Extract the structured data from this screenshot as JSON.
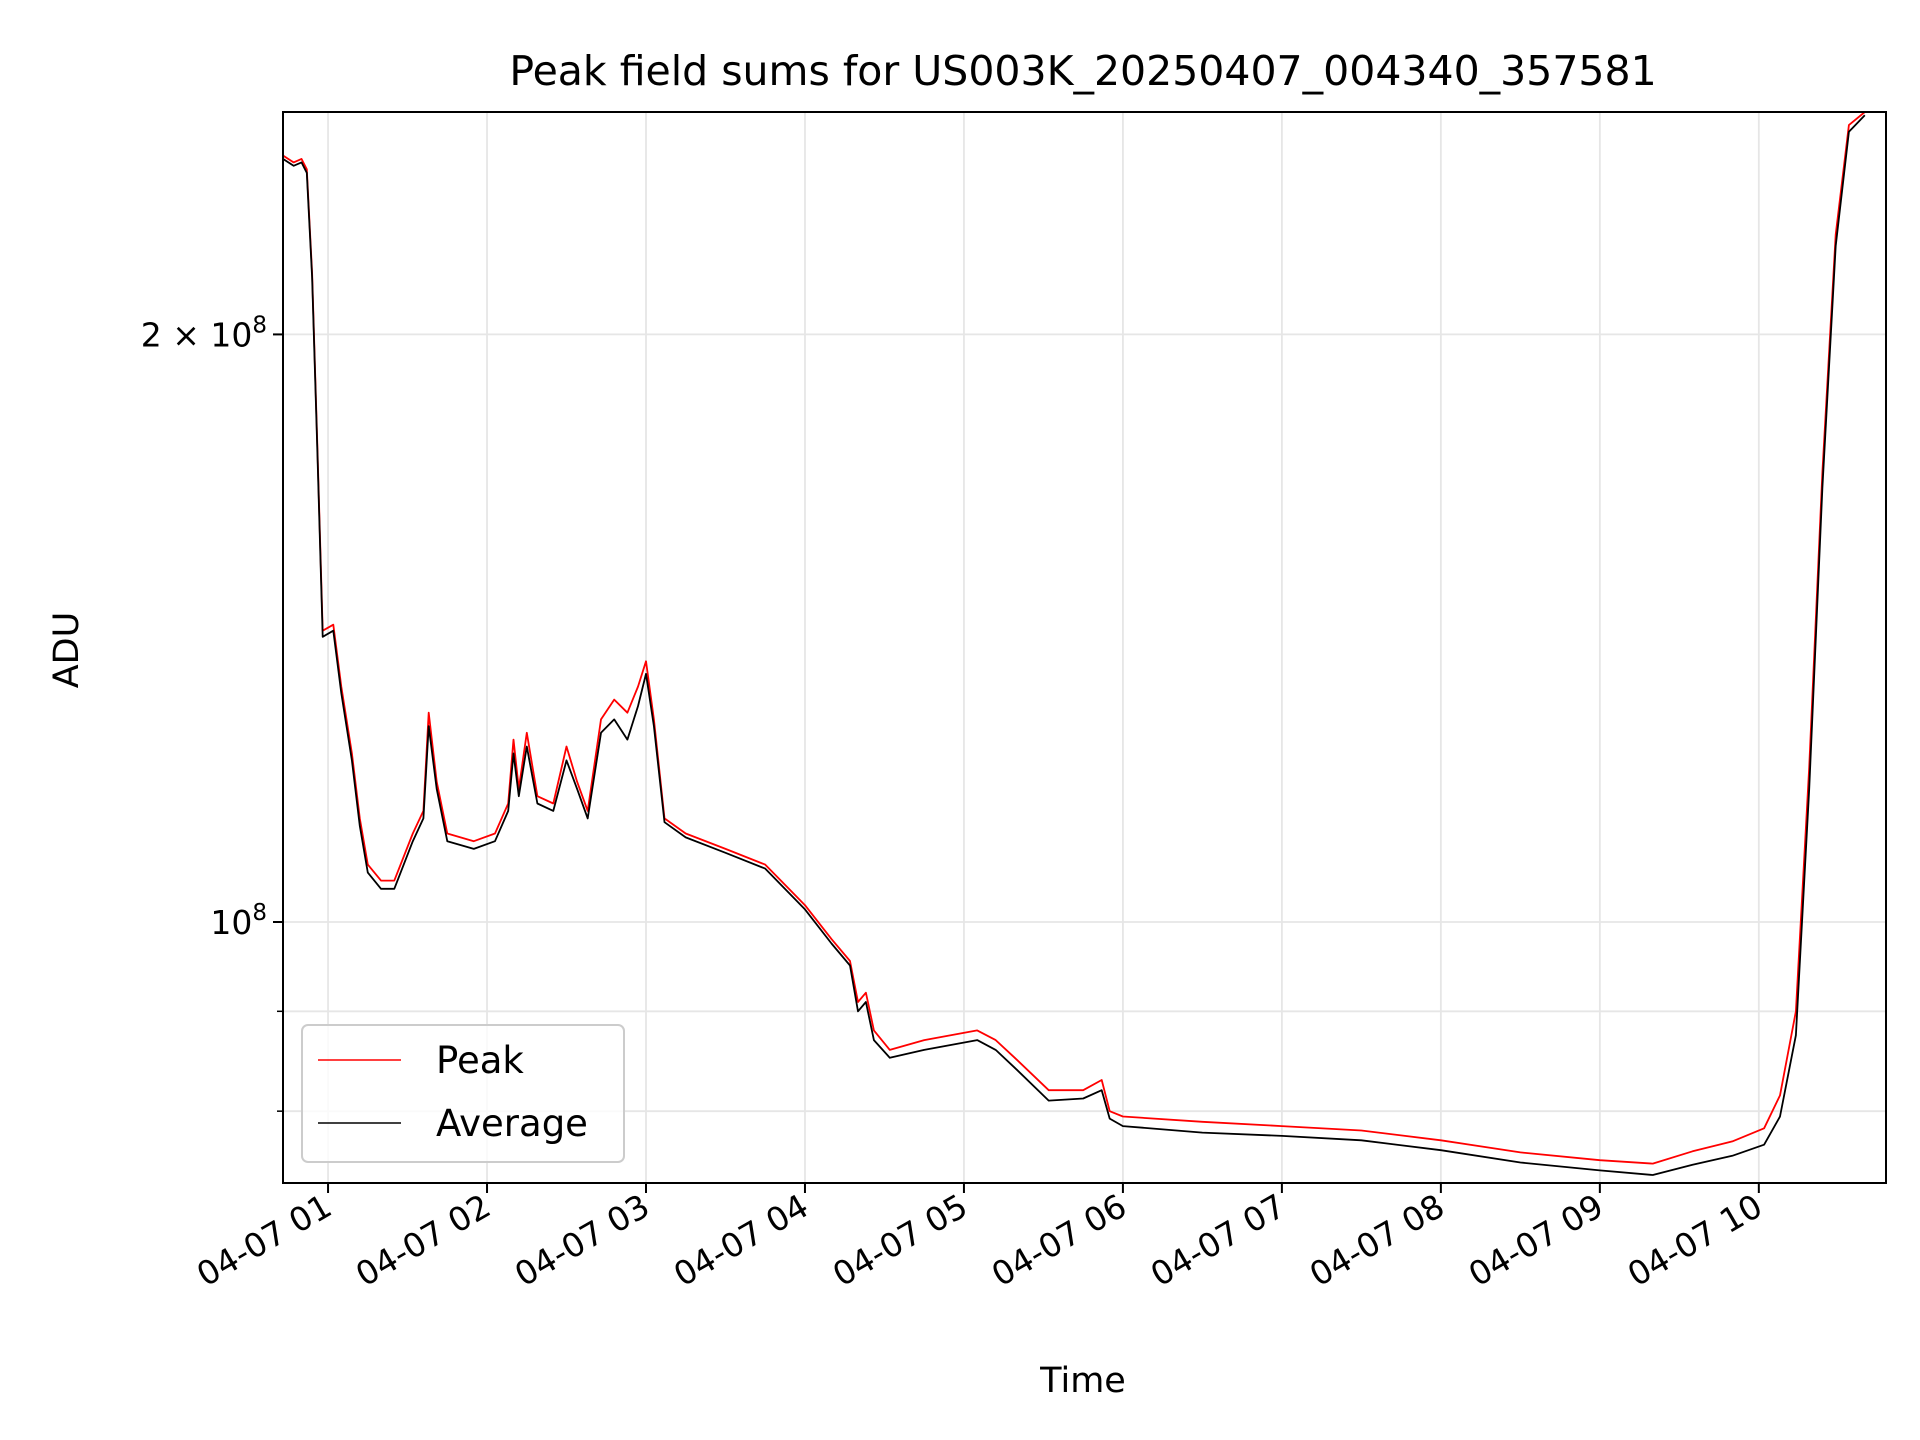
{
  "chart_data": {
    "type": "line",
    "title": "Peak field sums for US003K_20250407_004340_357581",
    "xlabel": "Time",
    "ylabel": "ADU",
    "yscale": "log",
    "grid": true,
    "legend_position": "lower-left",
    "xlim": [
      "2025-04-07 00:43",
      "2025-04-07 10:48"
    ],
    "ylim": [
      73500000,
      260000000
    ],
    "x_ticks": [
      {
        "value": "2025-04-07 01:00",
        "label": "04-07 01"
      },
      {
        "value": "2025-04-07 02:00",
        "label": "04-07 02"
      },
      {
        "value": "2025-04-07 03:00",
        "label": "04-07 03"
      },
      {
        "value": "2025-04-07 04:00",
        "label": "04-07 04"
      },
      {
        "value": "2025-04-07 05:00",
        "label": "04-07 05"
      },
      {
        "value": "2025-04-07 06:00",
        "label": "04-07 06"
      },
      {
        "value": "2025-04-07 07:00",
        "label": "04-07 07"
      },
      {
        "value": "2025-04-07 08:00",
        "label": "04-07 08"
      },
      {
        "value": "2025-04-07 09:00",
        "label": "04-07 09"
      },
      {
        "value": "2025-04-07 10:00",
        "label": "04-07 10"
      }
    ],
    "y_major_ticks": [
      {
        "value": 100000000,
        "base": "10",
        "exp": "8",
        "coef": ""
      },
      {
        "value": 200000000,
        "base": "10",
        "exp": "8",
        "coef": "2 × "
      }
    ],
    "y_minor_ticks": [
      80000000,
      90000000
    ],
    "series": [
      {
        "name": "Peak",
        "color": "#ff0000",
        "points": [
          [
            "2025-04-07 00:43",
            247000000
          ],
          [
            "2025-04-07 00:47",
            245000000
          ],
          [
            "2025-04-07 00:50",
            246000000
          ],
          [
            "2025-04-07 00:52",
            243000000
          ],
          [
            "2025-04-07 00:54",
            215000000
          ],
          [
            "2025-04-07 00:56",
            175000000
          ],
          [
            "2025-04-07 00:58",
            141000000
          ],
          [
            "2025-04-07 01:02",
            142000000
          ],
          [
            "2025-04-07 01:05",
            132000000
          ],
          [
            "2025-04-07 01:09",
            122000000
          ],
          [
            "2025-04-07 01:12",
            113000000
          ],
          [
            "2025-04-07 01:15",
            107000000
          ],
          [
            "2025-04-07 01:20",
            105000000
          ],
          [
            "2025-04-07 01:25",
            105000000
          ],
          [
            "2025-04-07 01:32",
            111000000
          ],
          [
            "2025-04-07 01:36",
            114000000
          ],
          [
            "2025-04-07 01:38",
            128000000
          ],
          [
            "2025-04-07 01:41",
            118000000
          ],
          [
            "2025-04-07 01:45",
            111000000
          ],
          [
            "2025-04-07 01:55",
            110000000
          ],
          [
            "2025-04-07 02:03",
            111000000
          ],
          [
            "2025-04-07 02:08",
            115000000
          ],
          [
            "2025-04-07 02:10",
            124000000
          ],
          [
            "2025-04-07 02:12",
            117000000
          ],
          [
            "2025-04-07 02:15",
            125000000
          ],
          [
            "2025-04-07 02:19",
            116000000
          ],
          [
            "2025-04-07 02:25",
            115000000
          ],
          [
            "2025-04-07 02:30",
            123000000
          ],
          [
            "2025-04-07 02:34",
            118000000
          ],
          [
            "2025-04-07 02:38",
            114000000
          ],
          [
            "2025-04-07 02:43",
            127000000
          ],
          [
            "2025-04-07 02:48",
            130000000
          ],
          [
            "2025-04-07 02:53",
            128000000
          ],
          [
            "2025-04-07 02:57",
            132000000
          ],
          [
            "2025-04-07 03:00",
            136000000
          ],
          [
            "2025-04-07 03:03",
            127000000
          ],
          [
            "2025-04-07 03:07",
            113000000
          ],
          [
            "2025-04-07 03:15",
            111000000
          ],
          [
            "2025-04-07 03:30",
            109000000
          ],
          [
            "2025-04-07 03:45",
            107000000
          ],
          [
            "2025-04-07 04:00",
            102000000
          ],
          [
            "2025-04-07 04:10",
            98000000
          ],
          [
            "2025-04-07 04:17",
            95500000
          ],
          [
            "2025-04-07 04:20",
            91000000
          ],
          [
            "2025-04-07 04:23",
            92000000
          ],
          [
            "2025-04-07 04:26",
            88000000
          ],
          [
            "2025-04-07 04:32",
            86000000
          ],
          [
            "2025-04-07 04:45",
            87000000
          ],
          [
            "2025-04-07 05:05",
            88000000
          ],
          [
            "2025-04-07 05:12",
            87000000
          ],
          [
            "2025-04-07 05:20",
            85000000
          ],
          [
            "2025-04-07 05:32",
            82000000
          ],
          [
            "2025-04-07 05:45",
            82000000
          ],
          [
            "2025-04-07 05:52",
            83000000
          ],
          [
            "2025-04-07 05:55",
            80000000
          ],
          [
            "2025-04-07 06:00",
            79500000
          ],
          [
            "2025-04-07 06:30",
            79000000
          ],
          [
            "2025-04-07 07:00",
            78600000
          ],
          [
            "2025-04-07 07:30",
            78200000
          ],
          [
            "2025-04-07 08:00",
            77300000
          ],
          [
            "2025-04-07 08:30",
            76200000
          ],
          [
            "2025-04-07 09:00",
            75500000
          ],
          [
            "2025-04-07 09:20",
            75200000
          ],
          [
            "2025-04-07 09:35",
            76300000
          ],
          [
            "2025-04-07 09:50",
            77200000
          ],
          [
            "2025-04-07 10:02",
            78400000
          ],
          [
            "2025-04-07 10:08",
            81500000
          ],
          [
            "2025-04-07 10:14",
            90000000
          ],
          [
            "2025-04-07 10:19",
            120000000
          ],
          [
            "2025-04-07 10:24",
            170000000
          ],
          [
            "2025-04-07 10:29",
            225000000
          ],
          [
            "2025-04-07 10:34",
            256000000
          ],
          [
            "2025-04-07 10:40",
            260000000
          ]
        ]
      },
      {
        "name": "Average",
        "color": "#000000",
        "points": [
          [
            "2025-04-07 00:43",
            246000000
          ],
          [
            "2025-04-07 00:47",
            244000000
          ],
          [
            "2025-04-07 00:50",
            245000000
          ],
          [
            "2025-04-07 00:52",
            242000000
          ],
          [
            "2025-04-07 00:54",
            214000000
          ],
          [
            "2025-04-07 00:56",
            174000000
          ],
          [
            "2025-04-07 00:58",
            140000000
          ],
          [
            "2025-04-07 01:02",
            141000000
          ],
          [
            "2025-04-07 01:05",
            131000000
          ],
          [
            "2025-04-07 01:09",
            121000000
          ],
          [
            "2025-04-07 01:12",
            112000000
          ],
          [
            "2025-04-07 01:15",
            106000000
          ],
          [
            "2025-04-07 01:20",
            104000000
          ],
          [
            "2025-04-07 01:25",
            104000000
          ],
          [
            "2025-04-07 01:32",
            110000000
          ],
          [
            "2025-04-07 01:36",
            113000000
          ],
          [
            "2025-04-07 01:38",
            126000000
          ],
          [
            "2025-04-07 01:41",
            117000000
          ],
          [
            "2025-04-07 01:45",
            110000000
          ],
          [
            "2025-04-07 01:55",
            109000000
          ],
          [
            "2025-04-07 02:03",
            110000000
          ],
          [
            "2025-04-07 02:08",
            114000000
          ],
          [
            "2025-04-07 02:10",
            122000000
          ],
          [
            "2025-04-07 02:12",
            116000000
          ],
          [
            "2025-04-07 02:15",
            123000000
          ],
          [
            "2025-04-07 02:19",
            115000000
          ],
          [
            "2025-04-07 02:25",
            114000000
          ],
          [
            "2025-04-07 02:30",
            121000000
          ],
          [
            "2025-04-07 02:34",
            117000000
          ],
          [
            "2025-04-07 02:38",
            113000000
          ],
          [
            "2025-04-07 02:43",
            125000000
          ],
          [
            "2025-04-07 02:48",
            127000000
          ],
          [
            "2025-04-07 02:53",
            124000000
          ],
          [
            "2025-04-07 02:57",
            129000000
          ],
          [
            "2025-04-07 03:00",
            134000000
          ],
          [
            "2025-04-07 03:03",
            126000000
          ],
          [
            "2025-04-07 03:07",
            112500000
          ],
          [
            "2025-04-07 03:15",
            110500000
          ],
          [
            "2025-04-07 03:30",
            108500000
          ],
          [
            "2025-04-07 03:45",
            106500000
          ],
          [
            "2025-04-07 04:00",
            101500000
          ],
          [
            "2025-04-07 04:10",
            97500000
          ],
          [
            "2025-04-07 04:17",
            95000000
          ],
          [
            "2025-04-07 04:20",
            90000000
          ],
          [
            "2025-04-07 04:23",
            91000000
          ],
          [
            "2025-04-07 04:26",
            87000000
          ],
          [
            "2025-04-07 04:32",
            85200000
          ],
          [
            "2025-04-07 04:45",
            86000000
          ],
          [
            "2025-04-07 05:05",
            87000000
          ],
          [
            "2025-04-07 05:12",
            86000000
          ],
          [
            "2025-04-07 05:20",
            84000000
          ],
          [
            "2025-04-07 05:32",
            81000000
          ],
          [
            "2025-04-07 05:45",
            81200000
          ],
          [
            "2025-04-07 05:52",
            82000000
          ],
          [
            "2025-04-07 05:55",
            79300000
          ],
          [
            "2025-04-07 06:00",
            78600000
          ],
          [
            "2025-04-07 06:30",
            78000000
          ],
          [
            "2025-04-07 07:00",
            77700000
          ],
          [
            "2025-04-07 07:30",
            77300000
          ],
          [
            "2025-04-07 08:00",
            76400000
          ],
          [
            "2025-04-07 08:30",
            75300000
          ],
          [
            "2025-04-07 09:00",
            74600000
          ],
          [
            "2025-04-07 09:20",
            74200000
          ],
          [
            "2025-04-07 09:35",
            75100000
          ],
          [
            "2025-04-07 09:50",
            75900000
          ],
          [
            "2025-04-07 10:02",
            76900000
          ],
          [
            "2025-04-07 10:08",
            79500000
          ],
          [
            "2025-04-07 10:14",
            87500000
          ],
          [
            "2025-04-07 10:19",
            117000000
          ],
          [
            "2025-04-07 10:24",
            167000000
          ],
          [
            "2025-04-07 10:29",
            222000000
          ],
          [
            "2025-04-07 10:34",
            254000000
          ],
          [
            "2025-04-07 10:40",
            259000000
          ]
        ]
      }
    ]
  }
}
